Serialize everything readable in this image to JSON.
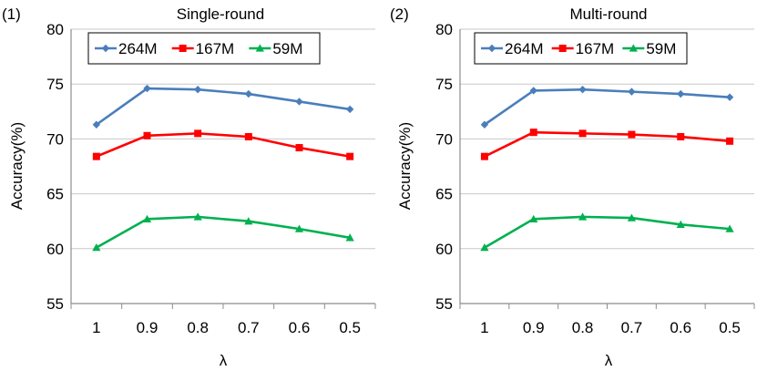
{
  "chart_data": [
    {
      "type": "line",
      "panel_label": "(1)",
      "title": "Single-round",
      "xlabel": "λ",
      "ylabel": "Accuracy(%)",
      "categories": [
        "1",
        "0.9",
        "0.8",
        "0.7",
        "0.6",
        "0.5"
      ],
      "ylim": [
        55,
        80
      ],
      "yticks": [
        "55",
        "60",
        "65",
        "70",
        "75",
        "80"
      ],
      "grid": true,
      "legend_position": "top-left",
      "series": [
        {
          "name": "264M",
          "color": "#4a7ebb",
          "marker": "diamond",
          "values": [
            71.3,
            74.6,
            74.5,
            74.1,
            73.4,
            72.7
          ]
        },
        {
          "name": "167M",
          "color": "#ff0000",
          "marker": "square",
          "values": [
            68.4,
            70.3,
            70.5,
            70.2,
            69.2,
            68.4
          ]
        },
        {
          "name": "59M",
          "color": "#00b050",
          "marker": "triangle",
          "values": [
            60.1,
            62.7,
            62.9,
            62.5,
            61.8,
            61.0
          ]
        }
      ]
    },
    {
      "type": "line",
      "panel_label": "(2)",
      "title": "Multi-round",
      "xlabel": "λ",
      "ylabel": "Accuracy(%)",
      "categories": [
        "1",
        "0.9",
        "0.8",
        "0.7",
        "0.6",
        "0.5"
      ],
      "ylim": [
        55,
        80
      ],
      "yticks": [
        "55",
        "60",
        "65",
        "70",
        "75",
        "80"
      ],
      "grid": true,
      "legend_position": "top-left",
      "series": [
        {
          "name": "264M",
          "color": "#4a7ebb",
          "marker": "diamond",
          "values": [
            71.3,
            74.4,
            74.5,
            74.3,
            74.1,
            73.8
          ]
        },
        {
          "name": "167M",
          "color": "#ff0000",
          "marker": "square",
          "values": [
            68.4,
            70.6,
            70.5,
            70.4,
            70.2,
            69.8
          ]
        },
        {
          "name": "59M",
          "color": "#00b050",
          "marker": "triangle",
          "values": [
            60.1,
            62.7,
            62.9,
            62.8,
            62.2,
            61.8
          ]
        }
      ]
    }
  ]
}
